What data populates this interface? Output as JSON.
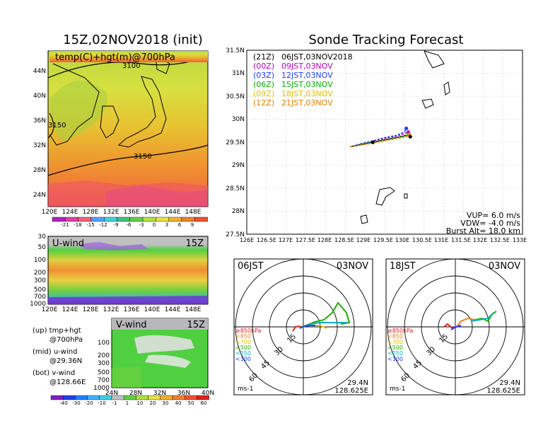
{
  "header": {
    "left_title": "15Z,02NOV2018 (init)",
    "right_title": "Sonde Tracking Forecast"
  },
  "top_map": {
    "label": "temp(C)+hgt(m)@700hPa",
    "contours": [
      "3100",
      "3150",
      "3150"
    ],
    "lat_ticks": [
      "44N",
      "40N",
      "36N",
      "32N",
      "28N",
      "24N"
    ],
    "lon_ticks": [
      "120E",
      "124E",
      "128E",
      "132E",
      "136E",
      "140E",
      "144E",
      "148E"
    ],
    "colorbar_labels": [
      "-21",
      "-18",
      "-15",
      "-12",
      "-9",
      "-6",
      "-3",
      "0",
      "3",
      "6",
      "9"
    ]
  },
  "u_panel": {
    "label": "U-wind",
    "time": "15Z",
    "p_ticks": [
      "30",
      "50",
      "100",
      "200",
      "300",
      "500",
      "700",
      "1000"
    ],
    "lon_ticks": [
      "120E",
      "124E",
      "128E",
      "132E",
      "136E",
      "140E",
      "144E",
      "148E"
    ]
  },
  "v_panel": {
    "label": "V-wind",
    "time": "15Z",
    "p_ticks": [
      "100",
      "200",
      "300",
      "500",
      "700",
      "1000"
    ],
    "lat_ticks": [
      "24N",
      "28N",
      "32N",
      "36N",
      "40N"
    ]
  },
  "side_notes": {
    "up_1": "(up) tmp+hgt",
    "up_2": "@700hPa",
    "mid_1": "(mid) u-wind",
    "mid_2": "@29.36N",
    "bot_1": "(bot) v-wind",
    "bot_2": "@128.66E"
  },
  "wind_colorbar_labels": [
    "-40",
    "-30",
    "-20",
    "-10",
    "-1",
    "1",
    "10",
    "20",
    "30",
    "40",
    "50",
    "60"
  ],
  "track": {
    "legend": [
      {
        "tag": "(21Z)",
        "text": "06JST,03NOV2018",
        "color": "#000000"
      },
      {
        "tag": "(00Z)",
        "text": "09JST,03NOV",
        "color": "#c000c0"
      },
      {
        "tag": "(03Z)",
        "text": "12JST,03NOV",
        "color": "#2040ff"
      },
      {
        "tag": "(06Z)",
        "text": "15JST,03NOV",
        "color": "#00b000"
      },
      {
        "tag": "(09Z)",
        "text": "18JST,03NOV",
        "color": "#e0c000"
      },
      {
        "tag": "(12Z)",
        "text": "21JST,03NOV",
        "color": "#e08000"
      }
    ],
    "lat_ticks": [
      "31.5N",
      "31N",
      "30.5N",
      "30N",
      "29.5N",
      "29N",
      "28.5N",
      "28N",
      "27.5N"
    ],
    "lon_ticks": [
      "126E",
      "126.5E",
      "127E",
      "127.5E",
      "128E",
      "128.5E",
      "129E",
      "129.5E",
      "130E",
      "130.5E",
      "131E",
      "131.5E",
      "132E",
      "132.5E",
      "133E"
    ],
    "vup": "VUP= 6.0 m/s",
    "vdw": "VDW= -4.0 m/s",
    "burst": "Burst Alt= 18.0 km"
  },
  "hodo_left": {
    "time": "06JST",
    "date": "03NOV",
    "ring_labels": [
      "15",
      "30",
      "45",
      "60"
    ],
    "lat": "29.4N",
    "lon": "128.625E",
    "unit": "ms-1"
  },
  "hodo_right": {
    "time": "18JST",
    "date": "03NOV",
    "ring_labels": [
      "15",
      "30",
      "45",
      "60"
    ],
    "lat": "29.4N",
    "lon": "128.625E",
    "unit": "ms-1"
  },
  "hodo_legend": [
    {
      "text": "≥850hPa",
      "color": "#e02020"
    },
    {
      "text": "<850",
      "color": "#f08020"
    },
    {
      "text": "<700",
      "color": "#e0c000"
    },
    {
      "text": "<500",
      "color": "#20b000"
    },
    {
      "text": "<250",
      "color": "#00b0c0"
    },
    {
      "text": "<100",
      "color": "#2040ff"
    }
  ],
  "chart_data": {
    "type": "line",
    "title": "Sonde Tracking Forecast",
    "xlim": [
      126,
      133
    ],
    "ylim": [
      27.5,
      31.5
    ],
    "series": [
      {
        "name": "(21Z) 06JST,03NOV2018",
        "x": [
          128.62,
          128.9,
          129.2,
          129.5,
          129.8,
          130.05,
          130.13
        ],
        "y": [
          29.4,
          29.45,
          29.5,
          29.55,
          29.6,
          29.65,
          29.65
        ]
      },
      {
        "name": "(00Z) 09JST,03NOV",
        "x": [
          128.62,
          128.9,
          129.2,
          129.5,
          129.8,
          130.05,
          130.1
        ],
        "y": [
          29.4,
          29.46,
          29.52,
          29.58,
          29.63,
          29.7,
          29.75
        ]
      },
      {
        "name": "(03Z) 12JST,03NOV",
        "x": [
          128.62,
          128.9,
          129.2,
          129.5,
          129.8,
          130.0,
          130.05
        ],
        "y": [
          29.4,
          29.47,
          29.53,
          29.6,
          29.65,
          29.72,
          29.8
        ]
      },
      {
        "name": "(06Z) 15JST,03NOV",
        "x": [
          128.62,
          128.9,
          129.2,
          129.5,
          129.8,
          130.05,
          130.1
        ],
        "y": [
          29.4,
          29.45,
          29.5,
          29.55,
          29.6,
          29.65,
          29.68
        ]
      },
      {
        "name": "(09Z) 18JST,03NOV",
        "x": [
          128.62,
          128.9,
          129.2,
          129.5,
          129.8,
          130.05,
          130.1
        ],
        "y": [
          29.4,
          29.44,
          29.48,
          29.53,
          29.58,
          29.62,
          29.64
        ]
      },
      {
        "name": "(12Z) 21JST,03NOV",
        "x": [
          128.62,
          128.9,
          129.2,
          129.5,
          129.8,
          130.05,
          130.12
        ],
        "y": [
          29.4,
          29.44,
          29.48,
          29.53,
          29.58,
          29.62,
          29.66
        ]
      }
    ],
    "markers": [
      {
        "x": 129.2,
        "y": 29.5,
        "color": "#000000"
      },
      {
        "x": 130.05,
        "y": 29.8,
        "color": "#2040ff"
      },
      {
        "x": 130.1,
        "y": 29.72,
        "color": "#c000c0"
      },
      {
        "x": 130.12,
        "y": 29.67,
        "color": "#e08000"
      },
      {
        "x": 130.15,
        "y": 29.62,
        "color": "#000000"
      }
    ]
  }
}
